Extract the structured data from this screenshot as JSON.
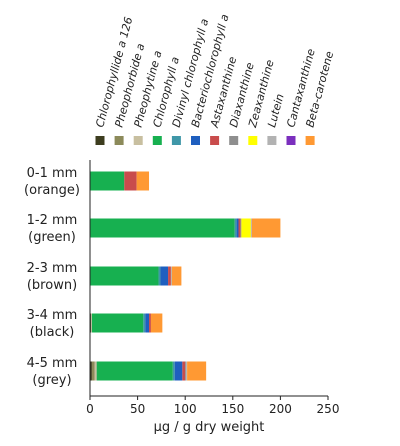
{
  "chart_data": {
    "type": "bar",
    "orientation": "horizontal",
    "stacked": true,
    "xlabel": "µg / g dry weight",
    "xlim": [
      0,
      250
    ],
    "xticks": [
      0,
      50,
      100,
      150,
      200,
      250
    ],
    "grid": false,
    "legend_position": "top",
    "categories": [
      [
        "0-1 mm",
        "(orange)"
      ],
      [
        "1-2 mm",
        "(green)"
      ],
      [
        "2-3 mm",
        "(brown)"
      ],
      [
        "3-4 mm",
        "(black)"
      ],
      [
        "4-5 mm",
        "(grey)"
      ]
    ],
    "series": [
      {
        "name": "Chlorophyllide a 126",
        "color": "#3d3d1f",
        "values": [
          0,
          0,
          0,
          1,
          2
        ]
      },
      {
        "name": "Pheophorbide a",
        "color": "#8c8a5a",
        "values": [
          0,
          0,
          0,
          0,
          3
        ]
      },
      {
        "name": "Pheophytine a",
        "color": "#c8bfa0",
        "values": [
          0,
          0,
          0,
          1,
          2
        ]
      },
      {
        "name": "Chlorophyll a",
        "color": "#17b050",
        "values": [
          36,
          152,
          72,
          54,
          80
        ]
      },
      {
        "name": "Divinyl chlorophyll a",
        "color": "#3f97a8",
        "values": [
          0,
          2,
          2,
          2,
          2
        ]
      },
      {
        "name": "Bacteriochlorophyll a",
        "color": "#1f5fbf",
        "values": [
          0,
          2,
          8,
          4,
          8
        ]
      },
      {
        "name": "Astaxanthine",
        "color": "#c94c4c",
        "values": [
          13,
          2,
          3,
          2,
          3
        ]
      },
      {
        "name": "Diaxanthine",
        "color": "#8e8e8e",
        "values": [
          0,
          1,
          0,
          0,
          1
        ]
      },
      {
        "name": "Zeaxanthine",
        "color": "#ffff00",
        "values": [
          0,
          10,
          0,
          0,
          0
        ]
      },
      {
        "name": "Lutein",
        "color": "#b2b2b2",
        "values": [
          0,
          1,
          1,
          0,
          1
        ]
      },
      {
        "name": "Cantaxanthine",
        "color": "#7b2fbe",
        "values": [
          0,
          0,
          0,
          0,
          0
        ]
      },
      {
        "name": "Beta-carotene",
        "color": "#ff9933",
        "values": [
          13,
          30,
          10,
          12,
          20
        ]
      }
    ]
  }
}
